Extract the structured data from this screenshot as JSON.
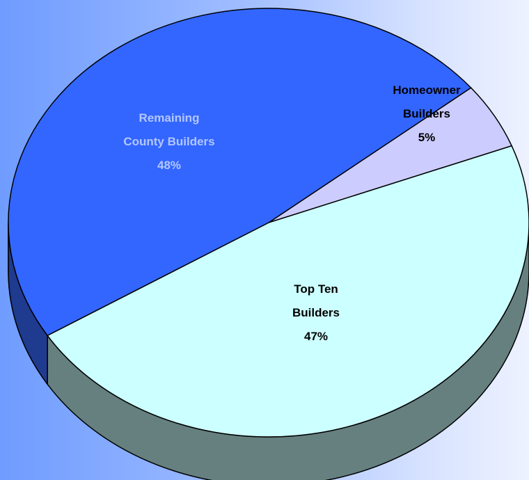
{
  "chart_data": {
    "type": "pie",
    "title": "",
    "slices": [
      {
        "label_lines": [
          "Remaining",
          "County Builders"
        ],
        "percent_label": "48%",
        "value": 48,
        "color": "#3366ff",
        "side_color": "#1f3b8f",
        "label_color": "#b3c7ff"
      },
      {
        "label_lines": [
          "Homeowner",
          "Builders"
        ],
        "percent_label": "5%",
        "value": 5,
        "color": "#ccccff",
        "side_color": "#8f8fb8",
        "label_color": "#000000"
      },
      {
        "label_lines": [
          "Top Ten",
          "Builders"
        ],
        "percent_label": "47%",
        "value": 47,
        "color": "#ccffff",
        "side_color": "#668080",
        "label_color": "#000000"
      }
    ],
    "style": "3d-tilted",
    "legend": "none"
  }
}
